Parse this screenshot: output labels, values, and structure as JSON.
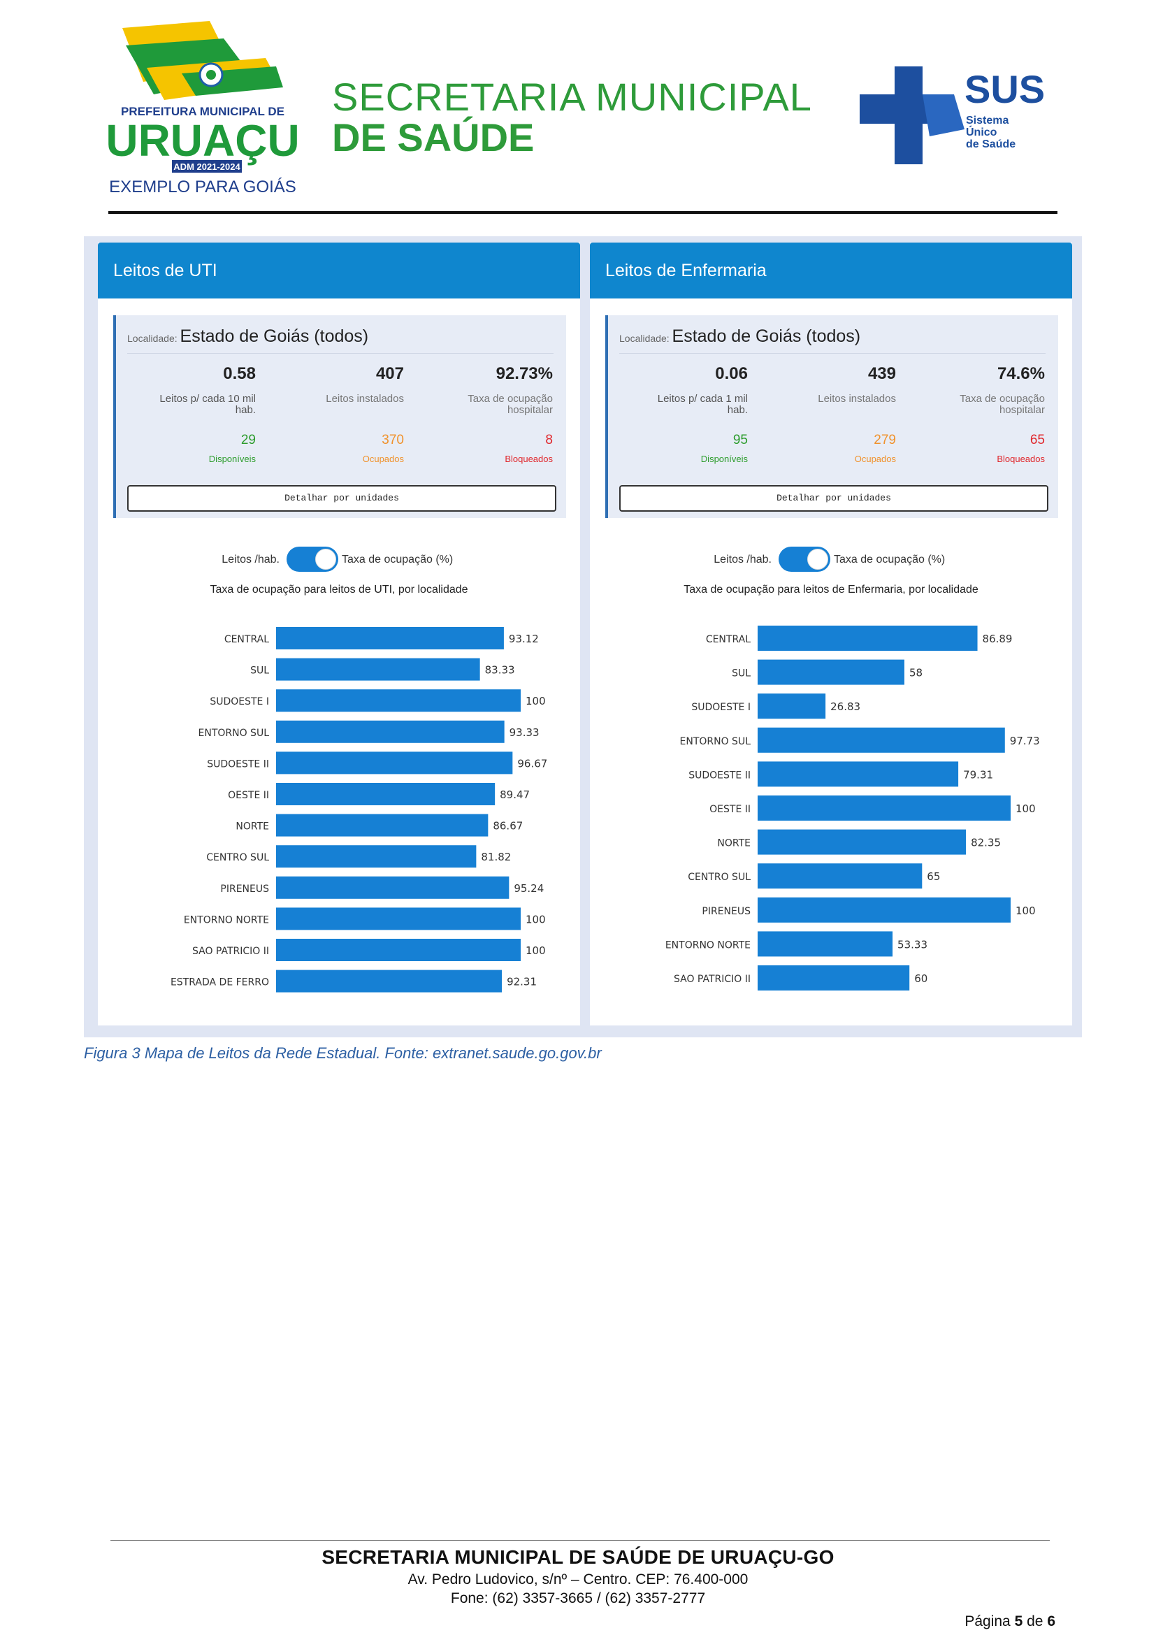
{
  "header": {
    "uruacu_logo": {
      "line1": "PREFEITURA MUNICIPAL DE",
      "name": "URUAÇU",
      "badge": "ADM 2021-2024",
      "slogan": "EXEMPLO PARA GOIÁS"
    },
    "title_line1": "SECRETARIA MUNICIPAL",
    "title_line2": "DE SAÚDE",
    "sus_logo": {
      "abbr": "SUS",
      "line1": "Sistema",
      "line2": "Único",
      "line3": "de Saúde"
    }
  },
  "colors": {
    "panel_header": "#0f86ce",
    "bar": "#1680d4",
    "green": "#2c9c2c",
    "orange": "#f0922c",
    "red": "#e0272c"
  },
  "uti": {
    "title": "Leitos de UTI",
    "location_label": "Localidade:",
    "location_value": "Estado de Goiás (todos)",
    "stat1_value": "0.58",
    "stat1_label_a": "Leitos p/ cada 10 mil",
    "stat1_label_b": "hab.",
    "stat2_value": "407",
    "stat2_label": "Leitos instalados",
    "stat3_value": "92.73%",
    "stat3_label_a": "Taxa de ocupação",
    "stat3_label_b": "hospitalar",
    "available": "29",
    "available_label": "Disponíveis",
    "occupied": "370",
    "occupied_label": "Ocupados",
    "blocked": "8",
    "blocked_label": "Bloqueados",
    "detail_button": "Detalhar por unidades",
    "toggle_left": "Leitos /hab.",
    "toggle_right": "Taxa de ocupação (%)",
    "chart_title": "Taxa de ocupação para leitos de UTI, por localidade"
  },
  "enf": {
    "title": "Leitos de Enfermaria",
    "location_label": "Localidade:",
    "location_value": "Estado de Goiás (todos)",
    "stat1_value": "0.06",
    "stat1_label_a": "Leitos p/ cada 1 mil",
    "stat1_label_b": "hab.",
    "stat2_value": "439",
    "stat2_label": "Leitos instalados",
    "stat3_value": "74.6%",
    "stat3_label_a": "Taxa de ocupação",
    "stat3_label_b": "hospitalar",
    "available": "95",
    "available_label": "Disponíveis",
    "occupied": "279",
    "occupied_label": "Ocupados",
    "blocked": "65",
    "blocked_label": "Bloqueados",
    "detail_button": "Detalhar por unidades",
    "toggle_left": "Leitos /hab.",
    "toggle_right": "Taxa de ocupação (%)",
    "chart_title": "Taxa de ocupação para leitos de Enfermaria, por localidade"
  },
  "chart_data": [
    {
      "type": "bar",
      "orientation": "horizontal",
      "title": "Taxa de ocupação para leitos de UTI, por localidade",
      "categories": [
        "CENTRAL",
        "SUL",
        "SUDOESTE I",
        "ENTORNO SUL",
        "SUDOESTE II",
        "OESTE II",
        "NORTE",
        "CENTRO SUL",
        "PIRENEUS",
        "ENTORNO NORTE",
        "SAO PATRICIO II",
        "ESTRADA DE FERRO"
      ],
      "values": [
        93.12,
        83.33,
        100,
        93.33,
        96.67,
        89.47,
        86.67,
        81.82,
        95.24,
        100,
        100,
        92.31
      ],
      "value_labels": [
        "93.12",
        "83.33",
        "100",
        "93.33",
        "96.67",
        "89.47",
        "86.67",
        "81.82",
        "95.24",
        "100",
        "100",
        "92.31"
      ],
      "xlim": [
        0,
        100
      ],
      "grid": false
    },
    {
      "type": "bar",
      "orientation": "horizontal",
      "title": "Taxa de ocupação para leitos de Enfermaria, por localidade",
      "categories": [
        "CENTRAL",
        "SUL",
        "SUDOESTE I",
        "ENTORNO SUL",
        "SUDOESTE II",
        "OESTE II",
        "NORTE",
        "CENTRO SUL",
        "PIRENEUS",
        "ENTORNO NORTE",
        "SAO PATRICIO II"
      ],
      "values": [
        86.89,
        58,
        26.83,
        97.73,
        79.31,
        100,
        82.35,
        65,
        100,
        53.33,
        60
      ],
      "value_labels": [
        "86.89",
        "58",
        "26.83",
        "97.73",
        "79.31",
        "100",
        "82.35",
        "65",
        "100",
        "53.33",
        "60"
      ],
      "xlim": [
        0,
        100
      ],
      "grid": false
    }
  ],
  "caption": "Figura 3 Mapa de Leitos da Rede Estadual. Fonte: extranet.saude.go.gov.br",
  "footer": {
    "org": "SECRETARIA MUNICIPAL DE SAÚDE DE URUAÇU-GO",
    "address": "Av. Pedro Ludovico, s/nº – Centro. CEP: 76.400-000",
    "phone": "Fone: (62) 3357-3665 / (62) 3357-2777",
    "page_prefix": "Página",
    "page_current": "5",
    "page_of": "de",
    "page_total": "6"
  }
}
